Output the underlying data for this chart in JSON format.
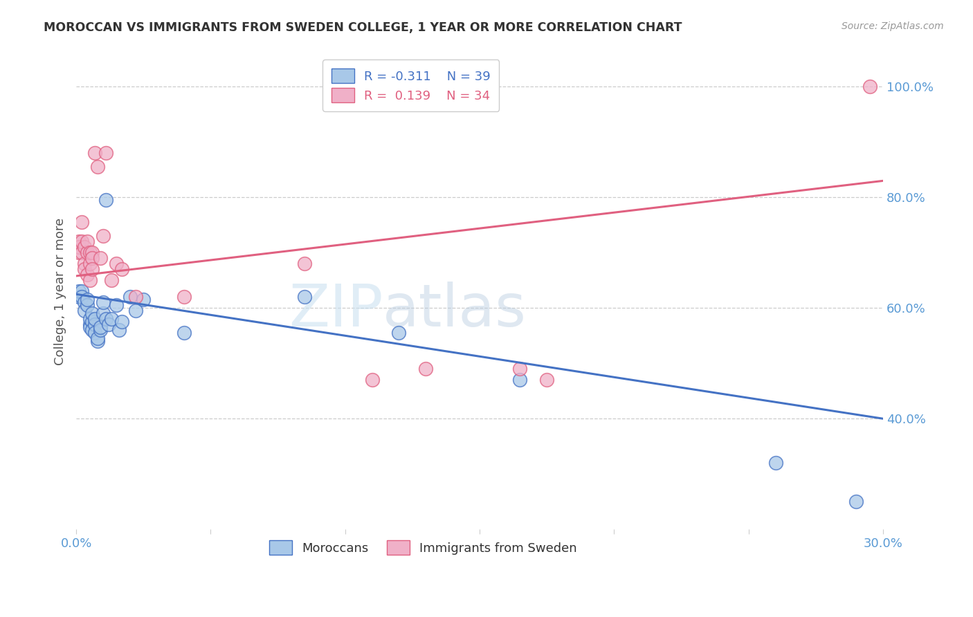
{
  "title": "MOROCCAN VS IMMIGRANTS FROM SWEDEN COLLEGE, 1 YEAR OR MORE CORRELATION CHART",
  "source": "Source: ZipAtlas.com",
  "ylabel": "College, 1 year or more",
  "xlim": [
    0.0,
    0.3
  ],
  "ylim": [
    0.2,
    1.06
  ],
  "xticks": [
    0.0,
    0.05,
    0.1,
    0.15,
    0.2,
    0.25,
    0.3
  ],
  "xtick_labels": [
    "0.0%",
    "",
    "",
    "",
    "",
    "",
    "30.0%"
  ],
  "yticks_right": [
    0.4,
    0.6,
    0.8,
    1.0
  ],
  "ytick_labels_right": [
    "40.0%",
    "60.0%",
    "80.0%",
    "100.0%"
  ],
  "blue_color": "#a8c8e8",
  "pink_color": "#f0b0c8",
  "blue_line_color": "#4472c4",
  "pink_line_color": "#e06080",
  "legend_blue_r": "-0.311",
  "legend_blue_n": "39",
  "legend_pink_r": "0.139",
  "legend_pink_n": "34",
  "legend_label_blue": "Moroccans",
  "legend_label_pink": "Immigrants from Sweden",
  "blue_x": [
    0.001,
    0.001,
    0.002,
    0.002,
    0.003,
    0.003,
    0.004,
    0.004,
    0.005,
    0.005,
    0.005,
    0.006,
    0.006,
    0.006,
    0.007,
    0.007,
    0.007,
    0.008,
    0.008,
    0.009,
    0.009,
    0.01,
    0.01,
    0.011,
    0.011,
    0.012,
    0.013,
    0.015,
    0.016,
    0.017,
    0.02,
    0.022,
    0.025,
    0.04,
    0.085,
    0.12,
    0.165,
    0.26,
    0.29
  ],
  "blue_y": [
    0.62,
    0.63,
    0.63,
    0.62,
    0.61,
    0.595,
    0.605,
    0.615,
    0.57,
    0.565,
    0.58,
    0.575,
    0.56,
    0.59,
    0.57,
    0.555,
    0.58,
    0.54,
    0.545,
    0.56,
    0.565,
    0.59,
    0.61,
    0.58,
    0.795,
    0.57,
    0.58,
    0.605,
    0.56,
    0.575,
    0.62,
    0.595,
    0.615,
    0.555,
    0.62,
    0.555,
    0.47,
    0.32,
    0.25
  ],
  "pink_x": [
    0.001,
    0.001,
    0.001,
    0.002,
    0.002,
    0.002,
    0.003,
    0.003,
    0.003,
    0.004,
    0.004,
    0.004,
    0.005,
    0.005,
    0.005,
    0.006,
    0.006,
    0.006,
    0.007,
    0.008,
    0.009,
    0.01,
    0.011,
    0.013,
    0.015,
    0.017,
    0.022,
    0.04,
    0.085,
    0.11,
    0.13,
    0.165,
    0.175,
    0.295
  ],
  "pink_y": [
    0.7,
    0.72,
    0.71,
    0.7,
    0.755,
    0.72,
    0.68,
    0.71,
    0.67,
    0.66,
    0.7,
    0.72,
    0.68,
    0.65,
    0.7,
    0.7,
    0.69,
    0.67,
    0.88,
    0.855,
    0.69,
    0.73,
    0.88,
    0.65,
    0.68,
    0.67,
    0.62,
    0.62,
    0.68,
    0.47,
    0.49,
    0.49,
    0.47,
    1.0
  ],
  "blue_line_x0": 0.0,
  "blue_line_x1": 0.3,
  "blue_line_y0": 0.625,
  "blue_line_y1": 0.4,
  "pink_line_x0": 0.0,
  "pink_line_x1": 0.3,
  "pink_line_y0": 0.658,
  "pink_line_y1": 0.83,
  "watermark_zip": "ZIP",
  "watermark_atlas": "atlas",
  "background_color": "#ffffff",
  "grid_color": "#cccccc",
  "tick_color": "#5b9bd5",
  "title_color": "#333333",
  "source_color": "#999999",
  "ylabel_color": "#555555"
}
